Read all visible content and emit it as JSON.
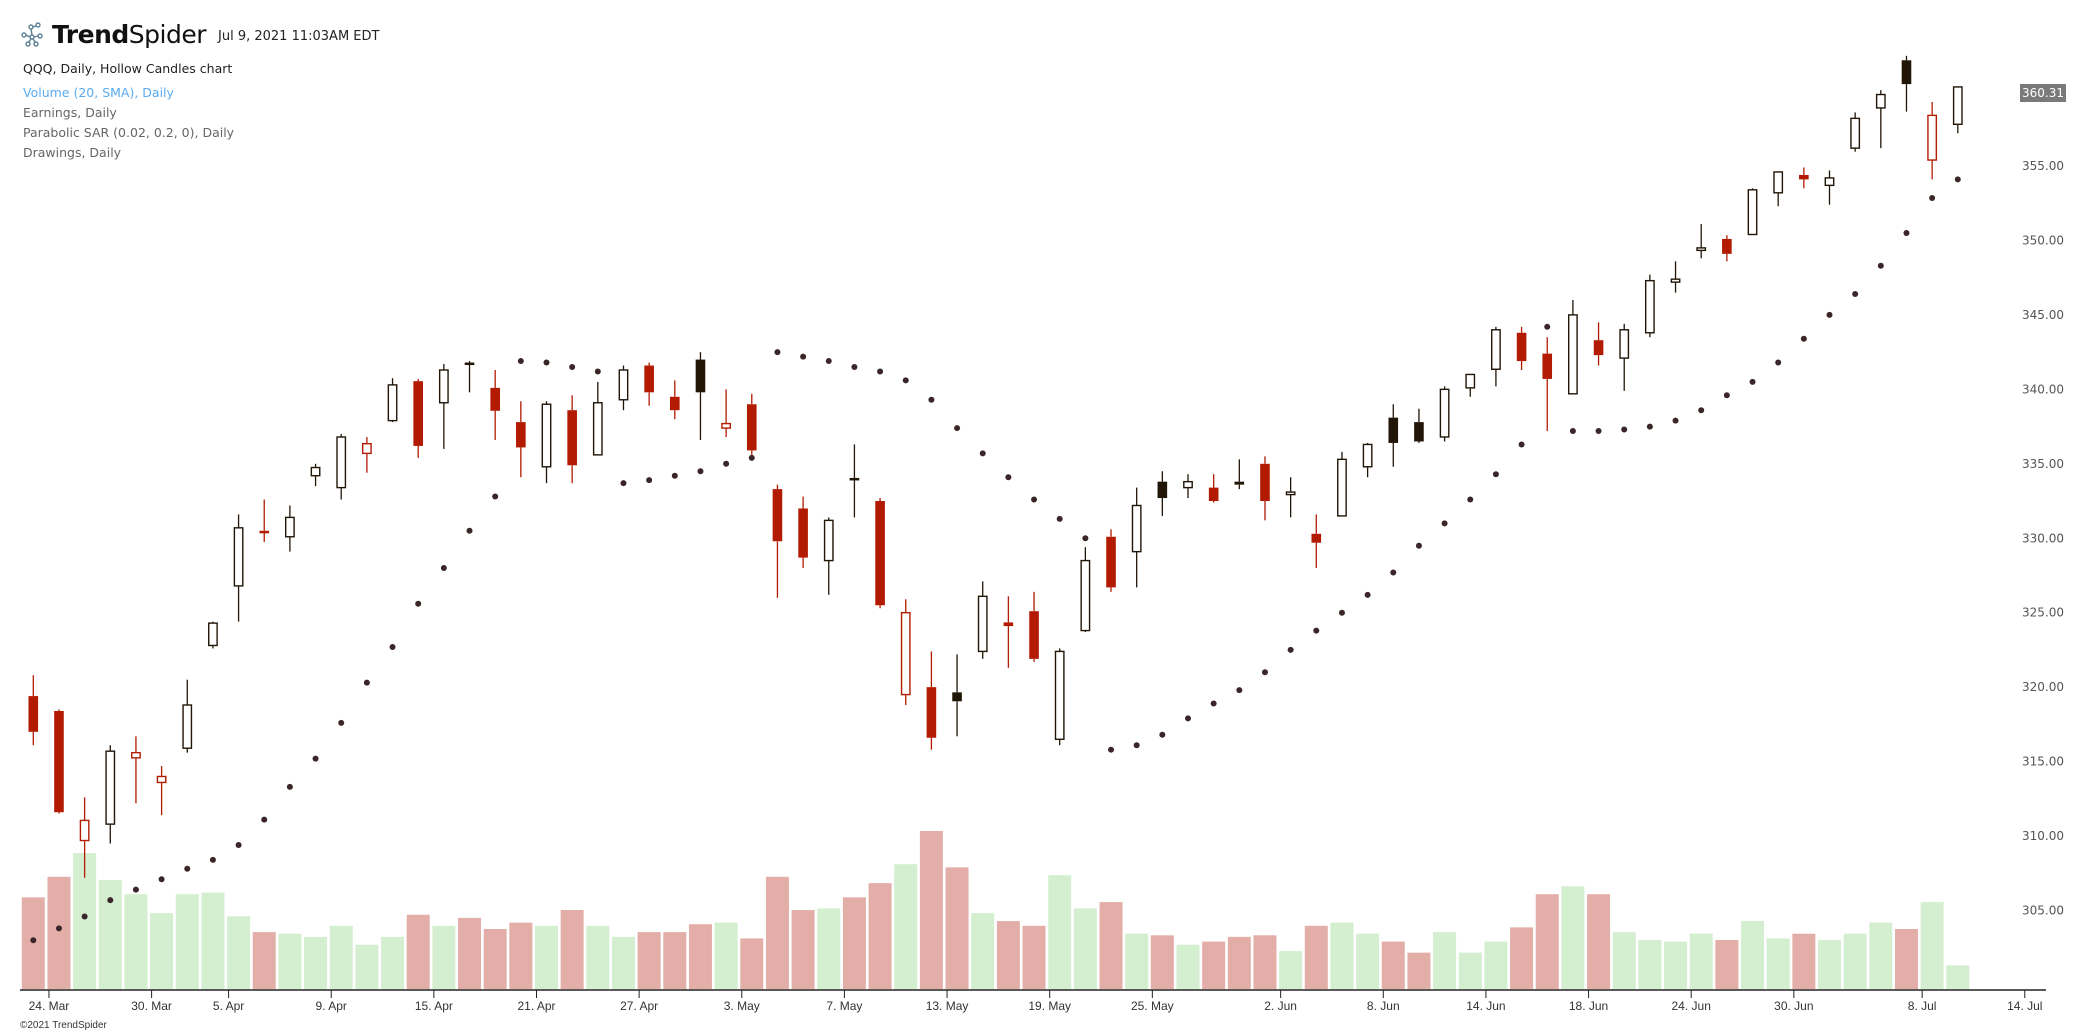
{
  "header": {
    "brand_bold": "Trend",
    "brand_light": "Spider",
    "timestamp": "Jul 9, 2021 11:03AM EDT"
  },
  "legend": {
    "main": "QQQ, Daily, Hollow Candles chart",
    "volume": "Volume (20, SMA), Daily",
    "earnings": "Earnings, Daily",
    "psar": "Parabolic SAR (0.02, 0.2, 0), Daily",
    "drawings": "Drawings, Daily"
  },
  "last_price": "360.31",
  "footer": {
    "copyright": "©2021 TrendSpider"
  },
  "colors": {
    "down": "#b21a02",
    "up": "#211507",
    "sar": "#3a2628",
    "volume_up": "#d4eed0",
    "volume_down": "#e4aea8",
    "volume_sma_legend": "#5aabf0"
  },
  "chart_data": {
    "type": "candlestick",
    "symbol": "QQQ",
    "style": "hollow candles",
    "y_axis": {
      "side": "right",
      "ylim": [
        303,
        363
      ],
      "ticks": [
        "305.00",
        "310.00",
        "315.00",
        "320.00",
        "325.00",
        "330.00",
        "335.00",
        "340.00",
        "345.00",
        "350.00",
        "355.00"
      ],
      "tick_values": [
        305,
        310,
        315,
        320,
        325,
        330,
        335,
        340,
        345,
        350,
        355
      ]
    },
    "x_axis": {
      "ticks": [
        {
          "label": "24. Mar",
          "date": "2021-03-24"
        },
        {
          "label": "30. Mar",
          "date": "2021-03-30"
        },
        {
          "label": "5. Apr",
          "date": "2021-04-05"
        },
        {
          "label": "9. Apr",
          "date": "2021-04-09"
        },
        {
          "label": "15. Apr",
          "date": "2021-04-15"
        },
        {
          "label": "21. Apr",
          "date": "2021-04-21"
        },
        {
          "label": "27. Apr",
          "date": "2021-04-27"
        },
        {
          "label": "3. May",
          "date": "2021-05-03"
        },
        {
          "label": "7. May",
          "date": "2021-05-07"
        },
        {
          "label": "13. May",
          "date": "2021-05-13"
        },
        {
          "label": "19. May",
          "date": "2021-05-19"
        },
        {
          "label": "25. May",
          "date": "2021-05-25"
        },
        {
          "label": "2. Jun",
          "date": "2021-06-02"
        },
        {
          "label": "8. Jun",
          "date": "2021-06-08"
        },
        {
          "label": "14. Jun",
          "date": "2021-06-14"
        },
        {
          "label": "18. Jun",
          "date": "2021-06-18"
        },
        {
          "label": "24. Jun",
          "date": "2021-06-24"
        },
        {
          "label": "30. Jun",
          "date": "2021-06-30"
        },
        {
          "label": "8. Jul",
          "date": "2021-07-08"
        },
        {
          "label": "14. Jul",
          "date": "2021-07-14"
        }
      ]
    },
    "dates": [
      "2021-03-23",
      "2021-03-24",
      "2021-03-25",
      "2021-03-26",
      "2021-03-29",
      "2021-03-30",
      "2021-03-31",
      "2021-04-01",
      "2021-04-05",
      "2021-04-06",
      "2021-04-07",
      "2021-04-08",
      "2021-04-09",
      "2021-04-12",
      "2021-04-13",
      "2021-04-14",
      "2021-04-15",
      "2021-04-16",
      "2021-04-19",
      "2021-04-20",
      "2021-04-21",
      "2021-04-22",
      "2021-04-23",
      "2021-04-26",
      "2021-04-27",
      "2021-04-28",
      "2021-04-29",
      "2021-04-30",
      "2021-05-03",
      "2021-05-04",
      "2021-05-05",
      "2021-05-06",
      "2021-05-07",
      "2021-05-10",
      "2021-05-11",
      "2021-05-12",
      "2021-05-13",
      "2021-05-14",
      "2021-05-17",
      "2021-05-18",
      "2021-05-19",
      "2021-05-20",
      "2021-05-21",
      "2021-05-24",
      "2021-05-25",
      "2021-05-26",
      "2021-05-27",
      "2021-05-28",
      "2021-06-01",
      "2021-06-02",
      "2021-06-03",
      "2021-06-04",
      "2021-06-07",
      "2021-06-08",
      "2021-06-09",
      "2021-06-10",
      "2021-06-11",
      "2021-06-14",
      "2021-06-15",
      "2021-06-16",
      "2021-06-17",
      "2021-06-18",
      "2021-06-21",
      "2021-06-22",
      "2021-06-23",
      "2021-06-24",
      "2021-06-25",
      "2021-06-28",
      "2021-06-29",
      "2021-06-30",
      "2021-07-01",
      "2021-07-02",
      "2021-07-06",
      "2021-07-07",
      "2021-07-08",
      "2021-07-09"
    ],
    "ohlc": [
      [
        319.4,
        320.8,
        316.1,
        317.0
      ],
      [
        318.4,
        318.5,
        311.5,
        311.6
      ],
      [
        309.7,
        312.6,
        307.2,
        311.05
      ],
      [
        310.8,
        316.1,
        309.5,
        315.7
      ],
      [
        315.25,
        316.7,
        312.2,
        315.6
      ],
      [
        313.6,
        314.7,
        311.4,
        314.0
      ],
      [
        315.9,
        320.5,
        315.6,
        318.8
      ],
      [
        322.8,
        324.4,
        322.6,
        324.3
      ],
      [
        326.8,
        331.6,
        324.4,
        330.7
      ],
      [
        330.5,
        332.6,
        329.75,
        330.45
      ],
      [
        330.1,
        332.2,
        329.1,
        331.4
      ],
      [
        334.2,
        335.0,
        333.5,
        334.75
      ],
      [
        333.4,
        337.0,
        332.6,
        336.8
      ],
      [
        335.7,
        336.8,
        334.4,
        336.35
      ],
      [
        337.9,
        340.75,
        337.8,
        340.3
      ],
      [
        340.55,
        340.7,
        335.4,
        336.2
      ],
      [
        339.1,
        341.7,
        336.0,
        341.3
      ],
      [
        341.8,
        341.9,
        339.8,
        341.7
      ],
      [
        340.1,
        341.3,
        336.6,
        338.56
      ],
      [
        337.8,
        339.2,
        334.1,
        336.1
      ],
      [
        334.8,
        339.2,
        333.7,
        339.0
      ],
      [
        338.6,
        339.6,
        333.7,
        334.9
      ],
      [
        335.6,
        340.5,
        335.6,
        339.1
      ],
      [
        339.3,
        341.6,
        338.6,
        341.3
      ],
      [
        341.6,
        341.8,
        338.9,
        339.8
      ],
      [
        339.5,
        340.6,
        338.0,
        338.6
      ],
      [
        342.0,
        342.5,
        336.6,
        339.8
      ],
      [
        337.4,
        340.0,
        336.8,
        337.7
      ],
      [
        339.0,
        339.7,
        335.6,
        335.9
      ],
      [
        333.3,
        333.6,
        326.0,
        329.8
      ],
      [
        332.0,
        332.8,
        328.0,
        328.7
      ],
      [
        328.5,
        331.4,
        326.2,
        331.2
      ],
      [
        334.05,
        336.3,
        331.4,
        333.9
      ],
      [
        332.5,
        332.7,
        325.3,
        325.5
      ],
      [
        319.5,
        325.9,
        318.8,
        325.0
      ],
      [
        320.0,
        322.4,
        315.8,
        316.6
      ],
      [
        319.65,
        322.2,
        316.7,
        319.05
      ],
      [
        322.4,
        327.1,
        321.9,
        326.1
      ],
      [
        324.35,
        326.1,
        321.3,
        324.1
      ],
      [
        325.1,
        326.4,
        321.7,
        321.9
      ],
      [
        316.5,
        322.6,
        316.1,
        322.4
      ],
      [
        323.8,
        329.4,
        323.7,
        328.5
      ],
      [
        330.1,
        330.6,
        326.4,
        326.7
      ],
      [
        329.1,
        333.4,
        326.7,
        332.2
      ],
      [
        333.8,
        334.5,
        331.5,
        332.7
      ],
      [
        333.4,
        334.3,
        332.7,
        333.8
      ],
      [
        333.4,
        334.3,
        332.4,
        332.5
      ],
      [
        333.8,
        335.3,
        333.3,
        333.6
      ],
      [
        335.0,
        335.5,
        331.2,
        332.5
      ],
      [
        332.96,
        334.1,
        331.4,
        333.1
      ],
      [
        330.3,
        331.6,
        328.0,
        329.7
      ],
      [
        331.5,
        335.8,
        331.5,
        335.3
      ],
      [
        334.8,
        336.4,
        334.1,
        336.3
      ],
      [
        338.1,
        339.0,
        334.8,
        336.4
      ],
      [
        337.8,
        338.7,
        336.4,
        336.5
      ],
      [
        336.8,
        340.2,
        336.5,
        340.0
      ],
      [
        340.1,
        341.0,
        339.5,
        341.0
      ],
      [
        341.35,
        344.2,
        340.2,
        344.0
      ],
      [
        343.8,
        344.2,
        341.3,
        341.9
      ],
      [
        342.4,
        343.5,
        337.2,
        340.7
      ],
      [
        339.7,
        346.0,
        339.7,
        345.0
      ],
      [
        343.3,
        344.5,
        341.6,
        342.3
      ],
      [
        342.1,
        344.4,
        339.9,
        344.0
      ],
      [
        343.8,
        347.7,
        343.5,
        347.3
      ],
      [
        347.2,
        348.6,
        346.5,
        347.4
      ],
      [
        349.4,
        351.1,
        348.8,
        349.5
      ],
      [
        350.1,
        350.35,
        348.6,
        349.1
      ],
      [
        350.4,
        353.5,
        350.4,
        353.4
      ],
      [
        353.2,
        354.6,
        352.3,
        354.6
      ],
      [
        354.4,
        354.9,
        353.5,
        354.1
      ],
      [
        353.7,
        354.7,
        352.4,
        354.2
      ],
      [
        356.2,
        358.6,
        355.96,
        358.2
      ],
      [
        358.9,
        360.1,
        356.2,
        359.8
      ],
      [
        362.1,
        362.4,
        358.65,
        360.5
      ],
      [
        355.4,
        359.3,
        354.1,
        358.4
      ],
      [
        357.8,
        360.1,
        357.2,
        360.31
      ]
    ],
    "parabolic_sar": [
      303.0,
      303.8,
      304.6,
      305.7,
      306.4,
      307.1,
      307.8,
      308.4,
      309.4,
      311.1,
      313.3,
      315.2,
      317.6,
      320.3,
      322.7,
      325.6,
      328.0,
      330.5,
      332.8,
      341.9,
      341.8,
      341.5,
      341.2,
      333.7,
      333.9,
      334.2,
      334.5,
      335.0,
      335.4,
      342.5,
      342.2,
      341.9,
      341.5,
      341.2,
      340.6,
      339.3,
      337.4,
      335.7,
      334.1,
      332.6,
      331.3,
      330.0,
      315.8,
      316.1,
      316.8,
      317.9,
      318.9,
      319.8,
      321.0,
      322.5,
      323.8,
      325.0,
      326.2,
      327.7,
      329.5,
      331.0,
      332.6,
      334.3,
      336.3,
      344.2,
      337.2,
      337.2,
      337.3,
      337.5,
      337.9,
      338.6,
      339.6,
      340.5,
      341.8,
      343.4,
      345.0,
      346.4,
      348.3,
      350.5,
      352.85,
      354.1
    ],
    "volume_relative_pct_of_max": [
      58,
      71,
      86,
      69,
      60,
      48,
      60,
      61,
      46,
      36,
      35,
      33,
      40,
      28,
      33,
      47,
      40,
      45,
      38,
      42,
      40,
      50,
      40,
      33,
      36,
      36,
      41,
      42,
      32,
      71,
      50,
      51,
      58,
      67,
      79,
      100,
      77,
      48,
      43,
      40,
      72,
      51,
      55,
      35,
      34,
      28,
      30,
      33,
      34,
      24,
      40,
      42,
      35,
      30,
      23,
      36,
      23,
      30,
      39,
      60,
      65,
      60,
      36,
      31,
      30,
      35,
      31,
      43,
      32,
      35,
      31,
      35,
      42,
      38,
      55,
      15
    ]
  }
}
